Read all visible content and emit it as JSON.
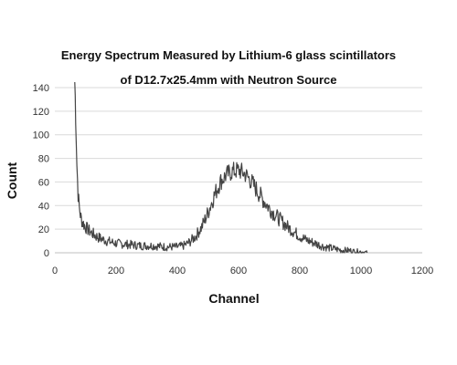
{
  "chart_data": {
    "type": "line",
    "title": "Energy Spectrum Measured by Lithium-6 glass scintillators",
    "subtitle": "of D12.7x25.4mm with Neutron Source",
    "xlabel": "Channel",
    "ylabel": "Count",
    "xlim": [
      0,
      1200
    ],
    "ylim": [
      0,
      140
    ],
    "xticks": [
      0,
      200,
      400,
      600,
      800,
      1000,
      1200
    ],
    "yticks": [
      0,
      20,
      40,
      60,
      80,
      100,
      120,
      140
    ],
    "grid": "horizontal",
    "legend": "none",
    "series": [
      {
        "color": "#444444",
        "x": [
          65,
          68,
          72,
          76,
          80,
          85,
          90,
          95,
          100,
          110,
          120,
          135,
          150,
          170,
          200,
          240,
          280,
          320,
          360,
          400,
          420,
          440,
          460,
          480,
          500,
          520,
          540,
          560,
          580,
          600,
          620,
          640,
          660,
          680,
          700,
          720,
          740,
          760,
          780,
          800,
          820,
          840,
          860,
          880,
          900,
          920,
          940,
          960,
          980,
          1000,
          1020
        ],
        "y": [
          150,
          115,
          75,
          50,
          38,
          30,
          26,
          24,
          22,
          19,
          17,
          14,
          12,
          10,
          8,
          7,
          6,
          6,
          5,
          5,
          6,
          9,
          14,
          22,
          34,
          48,
          60,
          66,
          69,
          70,
          67,
          61,
          53,
          45,
          38,
          32,
          27,
          22,
          18,
          14,
          11,
          9,
          7,
          5,
          4,
          3,
          2,
          2,
          1,
          1,
          0
        ]
      }
    ]
  }
}
